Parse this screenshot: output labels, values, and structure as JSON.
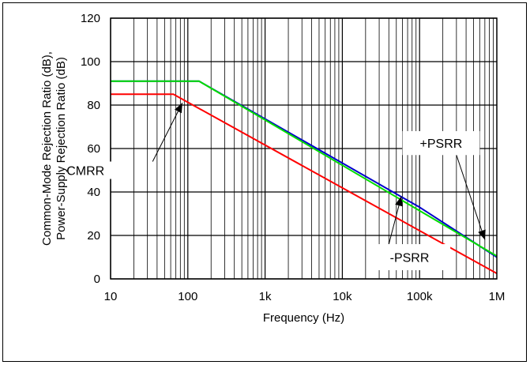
{
  "chart_data": {
    "type": "line",
    "title": "",
    "xlabel": "Frequency (Hz)",
    "ylabel_lines": [
      "Common-Mode Rejection Ratio (dB),",
      "Power-Supply Rejection Ratio (dB)"
    ],
    "x_scale": "log",
    "xlim": [
      10,
      1000000
    ],
    "ylim": [
      0,
      120
    ],
    "grid": true,
    "x_ticks": [
      {
        "value": 10,
        "label": "10"
      },
      {
        "value": 100,
        "label": "100"
      },
      {
        "value": 1000,
        "label": "1k"
      },
      {
        "value": 10000,
        "label": "10k"
      },
      {
        "value": 100000,
        "label": "100k"
      },
      {
        "value": 1000000,
        "label": "1M"
      }
    ],
    "y_ticks": [
      {
        "value": 0,
        "label": "0"
      },
      {
        "value": 20,
        "label": "20"
      },
      {
        "value": 40,
        "label": "40"
      },
      {
        "value": 60,
        "label": "60"
      },
      {
        "value": 80,
        "label": "80"
      },
      {
        "value": 100,
        "label": "100"
      },
      {
        "value": 120,
        "label": "120"
      }
    ],
    "series": [
      {
        "name": "CMRR",
        "color": "#ff0000",
        "points": [
          [
            10,
            85
          ],
          [
            65,
            85
          ],
          [
            1000000,
            2.5
          ]
        ]
      },
      {
        "name": "-PSRR",
        "color": "#0000cc",
        "points": [
          [
            10,
            91
          ],
          [
            140,
            91
          ],
          [
            100000,
            33
          ],
          [
            1000000,
            10
          ]
        ]
      },
      {
        "name": "+PSRR",
        "color": "#00dd00",
        "points": [
          [
            10,
            91
          ],
          [
            140,
            91
          ],
          [
            1000000,
            10.5
          ]
        ]
      }
    ],
    "annotations": [
      {
        "id": "cmrr",
        "text": "CMRR",
        "box": {
          "x": [
            1.4,
            16
          ],
          "y": [
            54,
            46
          ]
        },
        "arrow_from": [
          35,
          54
        ],
        "arrow_to": [
          85,
          81
        ]
      },
      {
        "id": "mpsrr",
        "text": "-PSRR",
        "box": {
          "x": [
            22000,
            250000
          ],
          "y": [
            16,
            4
          ]
        },
        "arrow_from": [
          40000,
          16
        ],
        "arrow_to": [
          58000,
          38
        ]
      },
      {
        "id": "ppsrr",
        "text": "+PSRR",
        "box": {
          "x": [
            60000,
            600000
          ],
          "y": [
            68,
            57
          ]
        },
        "arrow_from": [
          300000,
          57
        ],
        "arrow_to": [
          700000,
          18
        ]
      }
    ]
  }
}
